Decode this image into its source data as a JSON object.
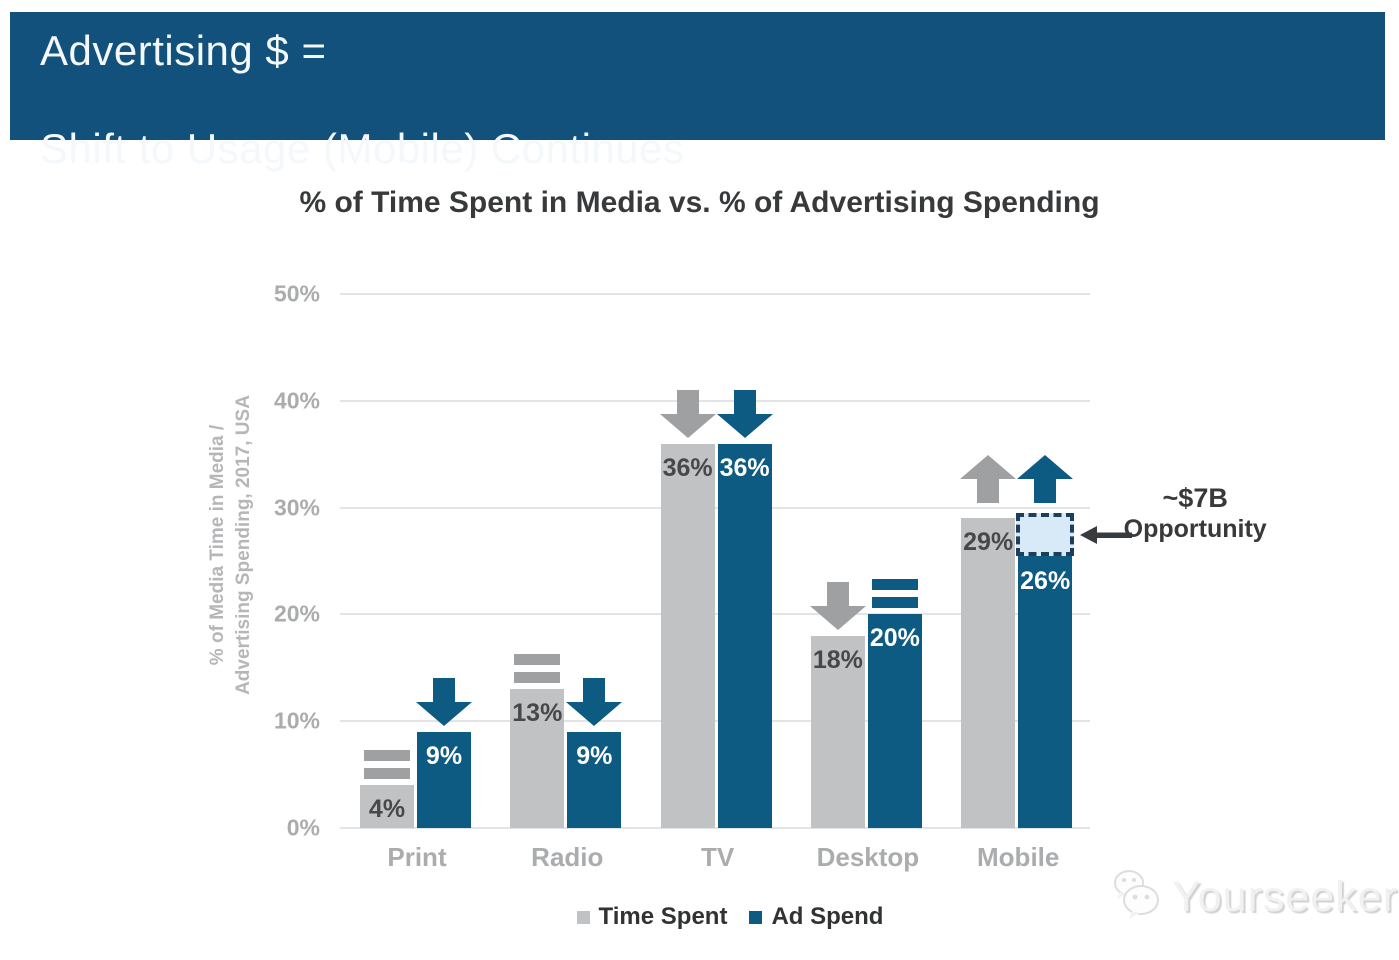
{
  "banner": {
    "line1": "Advertising $ =",
    "line2": "Shift to Usage (Mobile) Continues",
    "background_color": "#11517b"
  },
  "chart_data": {
    "type": "bar",
    "title": "% of Time Spent in Media vs. % of Advertising Spending",
    "ylabel_line1": "% of Media Time in Media /",
    "ylabel_line2": "Advertising Spending, 2017, USA",
    "ylim": [
      0,
      50
    ],
    "yticks": [
      "50%",
      "40%",
      "30%",
      "20%",
      "10%",
      "0%"
    ],
    "grid": true,
    "categories": [
      "Print",
      "Radio",
      "TV",
      "Desktop",
      "Mobile"
    ],
    "series": [
      {
        "name": "Time Spent",
        "color": "#c1c2c4",
        "label_color": "#47484a",
        "symbol_color": "#9fa0a2",
        "values": [
          4,
          13,
          36,
          18,
          29
        ],
        "labels": [
          "4%",
          "13%",
          "36%",
          "18%",
          "29%"
        ],
        "trend": [
          "equals",
          "equals",
          "down",
          "down",
          "up"
        ]
      },
      {
        "name": "Ad Spend",
        "color": "#0d5a83",
        "label_color": "#ffffff",
        "symbol_color": "#0d5a83",
        "values": [
          9,
          9,
          36,
          20,
          26
        ],
        "labels": [
          "9%",
          "9%",
          "36%",
          "20%",
          "26%"
        ],
        "trend": [
          "down",
          "down",
          "down",
          "equals",
          "up"
        ]
      }
    ],
    "legend_position": "bottom",
    "opportunity": {
      "category": "Mobile",
      "series": "Ad Spend",
      "from": 26,
      "to": 29.5,
      "label_line1": "~$7B",
      "label_line2": "Opportunity",
      "box_fill": "#d8eaf7",
      "box_border": "#1d3f5e"
    }
  },
  "watermark": {
    "text": "Yourseeker",
    "logo": "chat-bubbles-icon"
  }
}
